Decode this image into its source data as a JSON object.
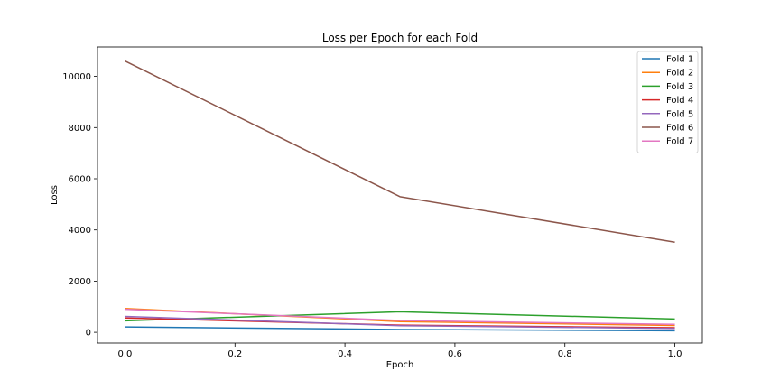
{
  "chart_data": {
    "type": "line",
    "title": "Loss per Epoch for each Fold",
    "xlabel": "Epoch",
    "ylabel": "Loss",
    "xlim": [
      -0.05,
      1.05
    ],
    "ylim": [
      -420,
      11150
    ],
    "x_ticks": [
      0.0,
      0.2,
      0.4,
      0.6,
      0.8,
      1.0
    ],
    "x_tick_labels": [
      "0.0",
      "0.2",
      "0.4",
      "0.6",
      "0.8",
      "1.0"
    ],
    "y_ticks": [
      0,
      2000,
      4000,
      6000,
      8000,
      10000
    ],
    "y_tick_labels": [
      "0",
      "2000",
      "4000",
      "6000",
      "8000",
      "10000"
    ],
    "grid": false,
    "legend_position": "top-right",
    "x": [
      0.0,
      0.5,
      1.0
    ],
    "series": [
      {
        "name": "Fold 1",
        "color": "#1f77b4",
        "values": [
          210,
          110,
          60
        ]
      },
      {
        "name": "Fold 2",
        "color": "#ff7f0e",
        "values": [
          930,
          420,
          270
        ]
      },
      {
        "name": "Fold 3",
        "color": "#2ca02c",
        "values": [
          450,
          800,
          520
        ]
      },
      {
        "name": "Fold 4",
        "color": "#d62728",
        "values": [
          560,
          280,
          180
        ]
      },
      {
        "name": "Fold 5",
        "color": "#9467bd",
        "values": [
          620,
          260,
          150
        ]
      },
      {
        "name": "Fold 6",
        "color": "#8c564b",
        "values": [
          10600,
          5300,
          3520
        ]
      },
      {
        "name": "Fold 7",
        "color": "#e377c2",
        "values": [
          900,
          460,
          310
        ]
      }
    ]
  }
}
